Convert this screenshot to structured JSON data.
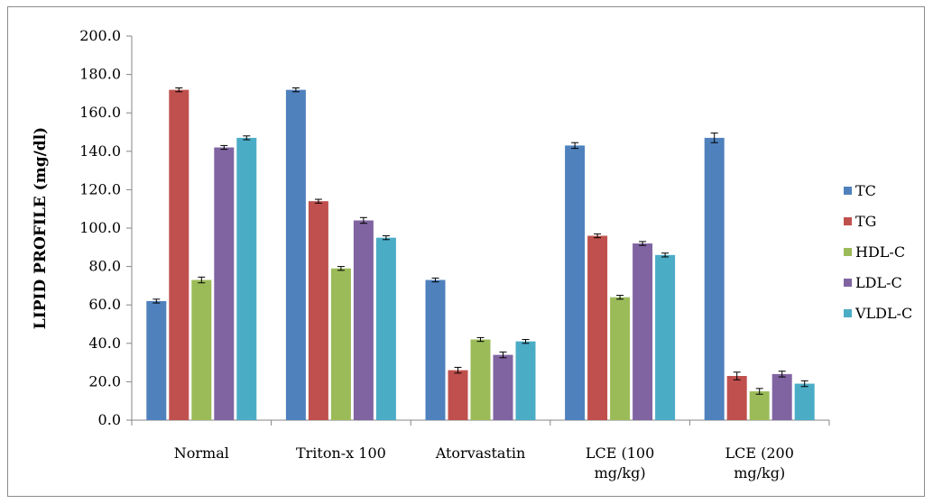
{
  "chart_data": {
    "type": "bar",
    "title": "",
    "xlabel": "",
    "ylabel": "LIPID PROFILE  (mg/dl)",
    "ylim": [
      0,
      200
    ],
    "ytick_step": 20,
    "ytick_labels": [
      "0.0",
      "20.0",
      "40.0",
      "60.0",
      "80.0",
      "100.0",
      "120.0",
      "140.0",
      "160.0",
      "180.0",
      "200.0"
    ],
    "categories": [
      [
        "Normal"
      ],
      [
        "Triton-x 100"
      ],
      [
        "Atorvastatin"
      ],
      [
        "LCE (100",
        "mg/kg)"
      ],
      [
        "LCE (200",
        "mg/kg)"
      ]
    ],
    "grid": false,
    "legend_position": "right",
    "series": [
      {
        "name": "TC",
        "color": "#4f81bd",
        "values": [
          62,
          172,
          73,
          143,
          147
        ],
        "errors": [
          1,
          1,
          1,
          1.5,
          2.5
        ]
      },
      {
        "name": "TG",
        "color": "#c0504d",
        "values": [
          172,
          114,
          26,
          96,
          23
        ],
        "errors": [
          1,
          1,
          1.5,
          1,
          2
        ]
      },
      {
        "name": "HDL-C",
        "color": "#9bbb59",
        "values": [
          73,
          79,
          42,
          64,
          15
        ],
        "errors": [
          1.5,
          1,
          1,
          1,
          1.5
        ]
      },
      {
        "name": "LDL-C",
        "color": "#8064a2",
        "values": [
          142,
          104,
          34,
          92,
          24
        ],
        "errors": [
          1,
          1.5,
          1.5,
          1,
          1.5
        ]
      },
      {
        "name": "VLDL-C",
        "color": "#4bacc6",
        "values": [
          147,
          95,
          41,
          86,
          19
        ],
        "errors": [
          1,
          1,
          1,
          1,
          1.5
        ]
      }
    ]
  }
}
